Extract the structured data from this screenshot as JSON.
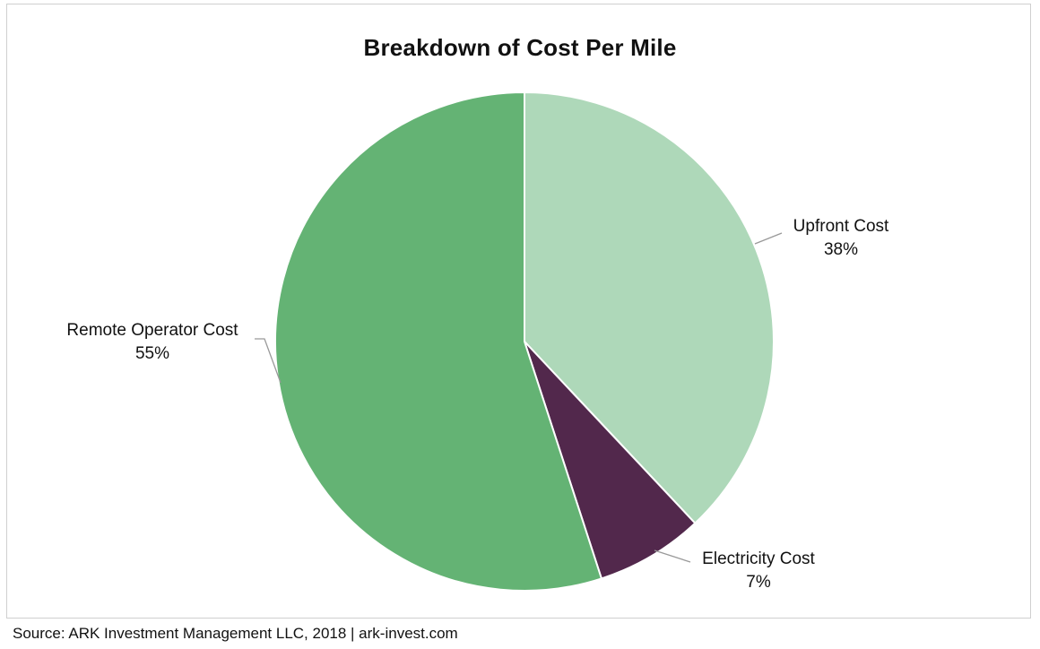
{
  "chart_data": {
    "type": "pie",
    "title": "Breakdown of Cost Per Mile",
    "slices": [
      {
        "label": "Upfront Cost",
        "value": 38,
        "value_label": "38%",
        "color": "#aed8b9"
      },
      {
        "label": "Electricity Cost",
        "value": 7,
        "value_label": "7%",
        "color": "#52284c"
      },
      {
        "label": "Remote Operator Cost",
        "value": 55,
        "value_label": "55%",
        "color": "#64b374"
      }
    ],
    "start": "12 o'clock",
    "direction": "clockwise",
    "legend": "none",
    "slice_border_color": "#ffffff",
    "leader_line_color": "#999999"
  },
  "footer": {
    "source": "Source: ARK Investment Management LLC, 2018 | ark-invest.com"
  }
}
